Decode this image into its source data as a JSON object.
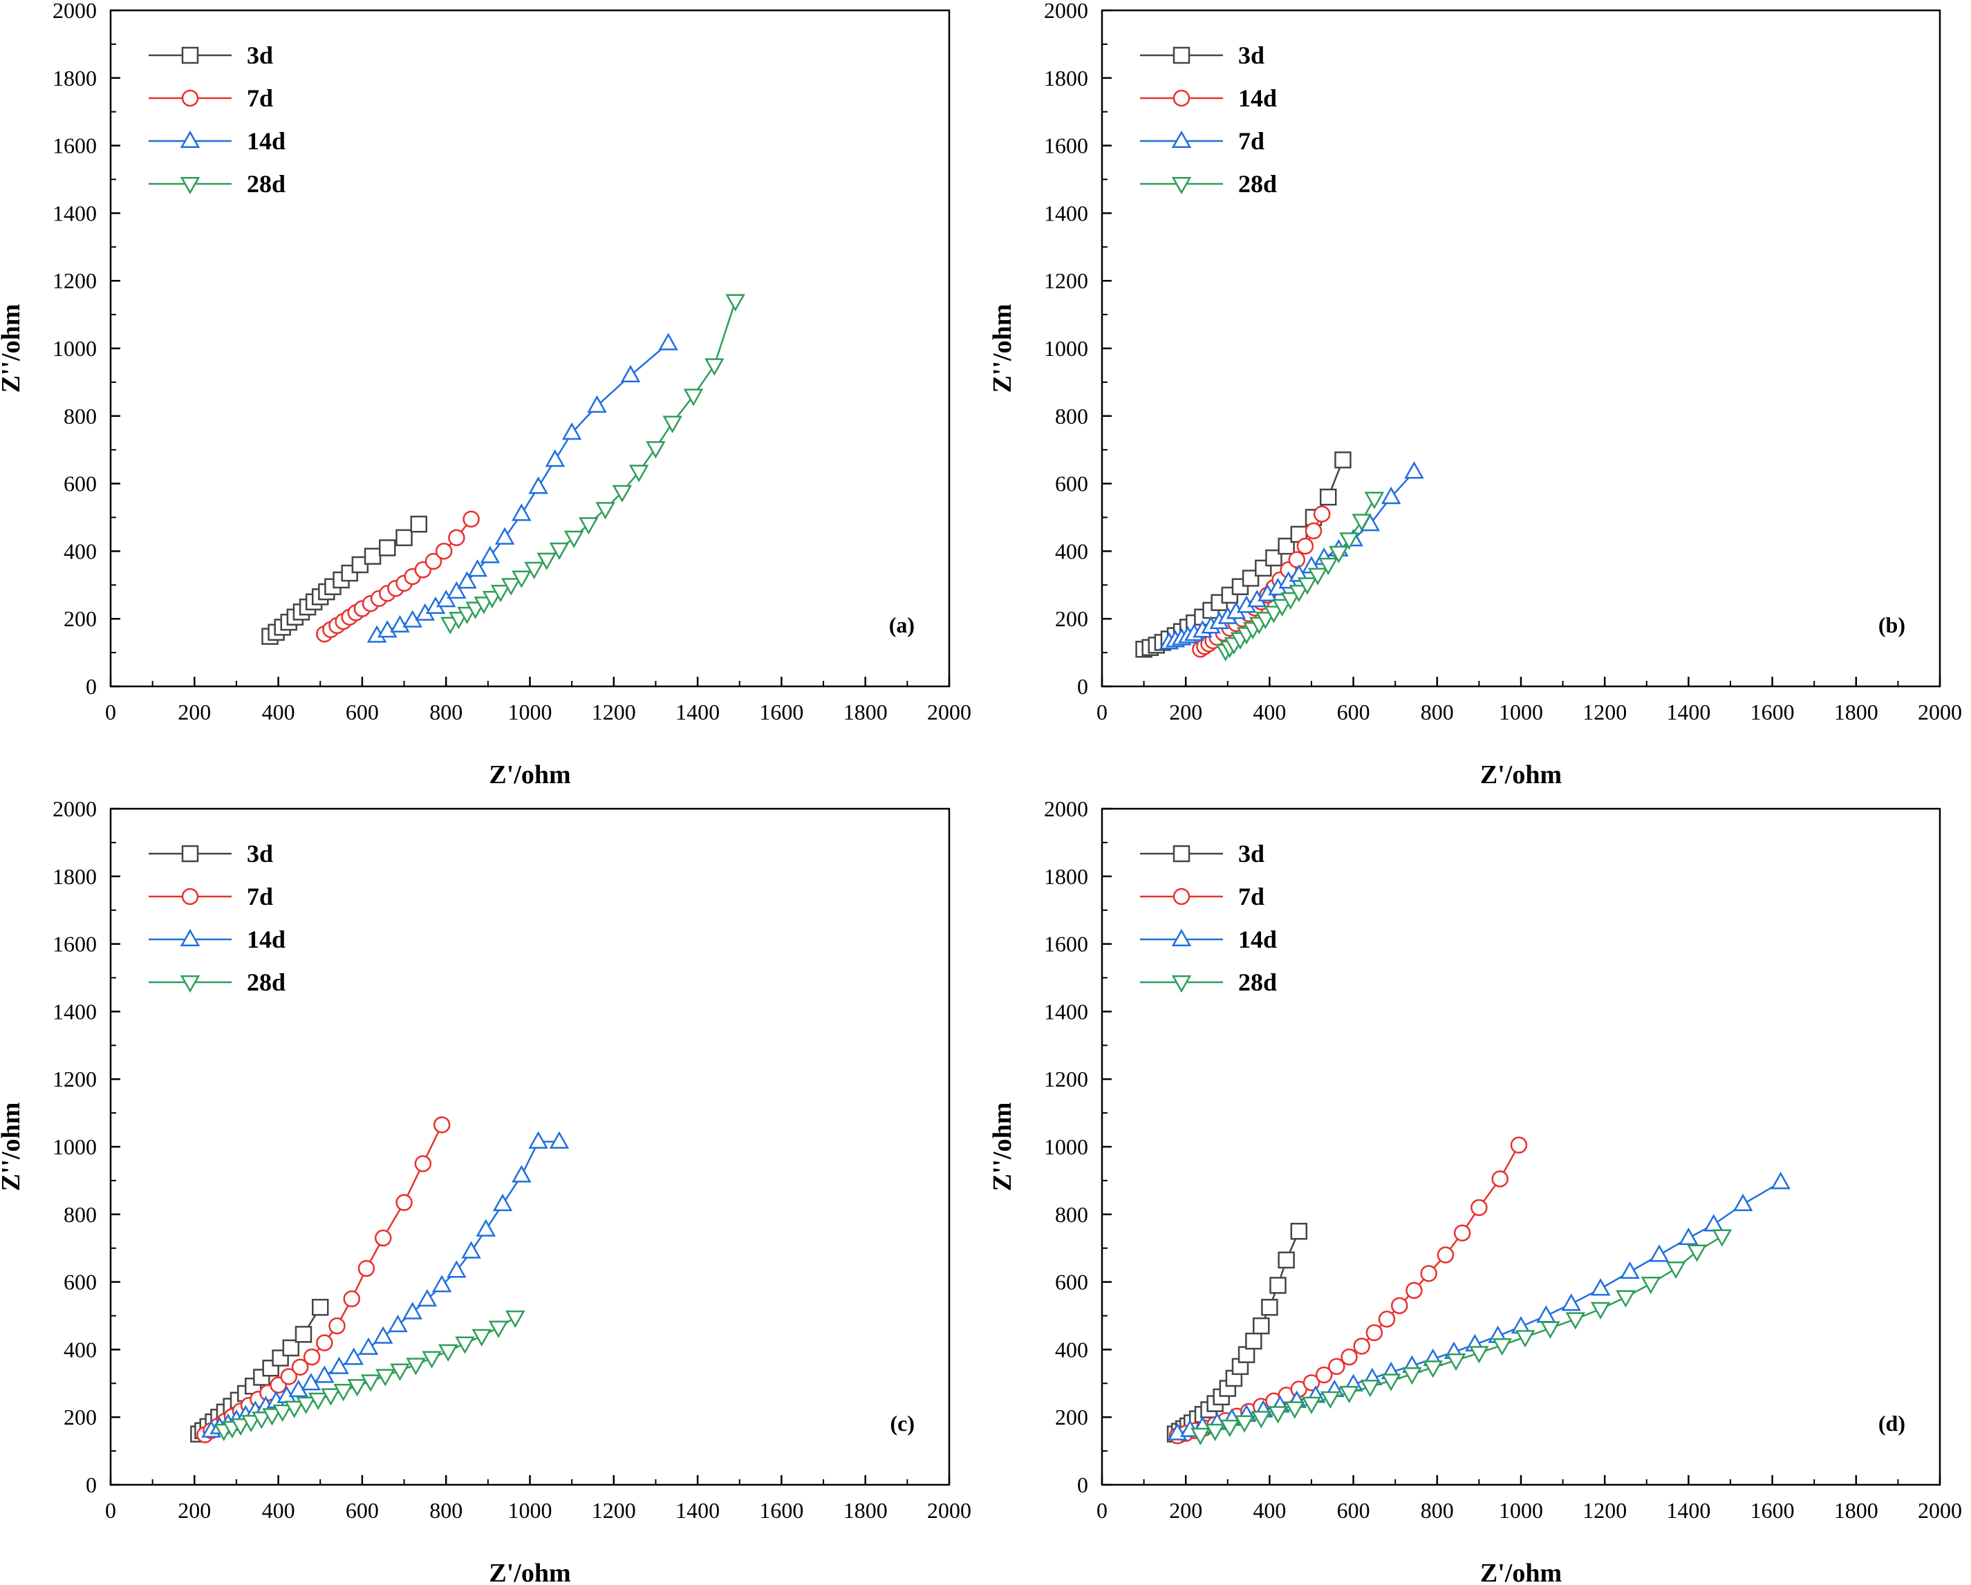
{
  "figure": {
    "panels": [
      "(a)",
      "(b)",
      "(c)",
      "(d)"
    ]
  },
  "chart_data": [
    {
      "type": "line",
      "panel_label": "(a)",
      "xlabel": "Z'/ohm",
      "ylabel": "Z''/ohm",
      "xlim": [
        0,
        2000
      ],
      "ylim": [
        0,
        2000
      ],
      "xticks": [
        0,
        200,
        400,
        600,
        800,
        1000,
        1200,
        1400,
        1600,
        1800,
        2000
      ],
      "yticks": [
        0,
        200,
        400,
        600,
        800,
        1000,
        1200,
        1400,
        1600,
        1800,
        2000
      ],
      "grid": false,
      "legend_position": "top-left",
      "series": [
        {
          "name": "3d",
          "color": "#454545",
          "marker": "square",
          "x": [
            380,
            395,
            410,
            425,
            440,
            455,
            470,
            485,
            500,
            515,
            530,
            550,
            570,
            595,
            625,
            660,
            700,
            735
          ],
          "y": [
            148,
            160,
            175,
            190,
            205,
            220,
            235,
            250,
            265,
            280,
            295,
            315,
            335,
            360,
            385,
            410,
            440,
            480
          ]
        },
        {
          "name": "7d",
          "color": "#e8312d",
          "marker": "circle",
          "x": [
            510,
            525,
            540,
            555,
            570,
            585,
            600,
            620,
            640,
            660,
            680,
            700,
            720,
            745,
            770,
            795,
            825,
            860
          ],
          "y": [
            155,
            168,
            180,
            192,
            205,
            218,
            230,
            245,
            260,
            275,
            290,
            305,
            325,
            345,
            370,
            400,
            440,
            495
          ]
        },
        {
          "name": "14d",
          "color": "#1f6fe0",
          "marker": "triangle-up",
          "x": [
            635,
            660,
            690,
            720,
            750,
            775,
            800,
            825,
            850,
            875,
            905,
            940,
            980,
            1020,
            1060,
            1100,
            1160,
            1240,
            1330
          ],
          "y": [
            150,
            165,
            180,
            195,
            215,
            235,
            255,
            280,
            310,
            345,
            385,
            440,
            510,
            590,
            670,
            750,
            830,
            920,
            1015
          ]
        },
        {
          "name": "28d",
          "color": "#2e9e58",
          "marker": "triangle-down",
          "x": [
            810,
            830,
            850,
            870,
            890,
            910,
            930,
            955,
            980,
            1010,
            1040,
            1070,
            1105,
            1140,
            1180,
            1220,
            1260,
            1300,
            1340,
            1390,
            1440,
            1490
          ],
          "y": [
            185,
            200,
            215,
            230,
            245,
            262,
            280,
            300,
            322,
            348,
            375,
            405,
            440,
            480,
            525,
            575,
            635,
            705,
            780,
            860,
            950,
            1140
          ]
        }
      ]
    },
    {
      "type": "line",
      "panel_label": "(b)",
      "xlabel": "Z'/ohm",
      "ylabel": "Z''/ohm",
      "xlim": [
        0,
        2000
      ],
      "ylim": [
        0,
        2000
      ],
      "xticks": [
        0,
        200,
        400,
        600,
        800,
        1000,
        1200,
        1400,
        1600,
        1800,
        2000
      ],
      "yticks": [
        0,
        200,
        400,
        600,
        800,
        1000,
        1200,
        1400,
        1600,
        1800,
        2000
      ],
      "grid": false,
      "legend_position": "top-left",
      "series": [
        {
          "name": "3d",
          "color": "#454545",
          "marker": "square",
          "x": [
            100,
            115,
            130,
            145,
            160,
            175,
            190,
            205,
            220,
            240,
            260,
            280,
            305,
            330,
            355,
            385,
            410,
            440,
            470,
            505,
            540,
            575
          ],
          "y": [
            110,
            115,
            122,
            130,
            140,
            150,
            162,
            175,
            188,
            205,
            225,
            248,
            270,
            295,
            320,
            350,
            380,
            415,
            450,
            500,
            560,
            670
          ]
        },
        {
          "name": "14d",
          "color": "#e8312d",
          "marker": "circle",
          "x": [
            235,
            245,
            255,
            265,
            275,
            290,
            305,
            320,
            335,
            350,
            365,
            380,
            395,
            410,
            425,
            445,
            465,
            485,
            505,
            525
          ],
          "y": [
            110,
            118,
            126,
            135,
            145,
            158,
            172,
            186,
            200,
            215,
            232,
            250,
            270,
            292,
            315,
            345,
            375,
            415,
            460,
            510
          ]
        },
        {
          "name": "7d",
          "color": "#1f6fe0",
          "marker": "triangle-up",
          "x": [
            160,
            175,
            190,
            205,
            220,
            240,
            260,
            280,
            300,
            320,
            345,
            370,
            395,
            420,
            445,
            470,
            500,
            530,
            565,
            600,
            640,
            690,
            745
          ],
          "y": [
            130,
            136,
            142,
            148,
            155,
            165,
            177,
            190,
            205,
            220,
            238,
            255,
            272,
            290,
            310,
            330,
            355,
            380,
            405,
            435,
            480,
            560,
            635
          ]
        },
        {
          "name": "28d",
          "color": "#2e9e58",
          "marker": "triangle-down",
          "x": [
            295,
            305,
            315,
            330,
            345,
            360,
            375,
            390,
            410,
            430,
            450,
            470,
            490,
            515,
            540,
            565,
            590,
            620,
            650
          ],
          "y": [
            105,
            115,
            125,
            140,
            155,
            170,
            185,
            200,
            218,
            238,
            258,
            280,
            302,
            330,
            360,
            395,
            435,
            490,
            555
          ]
        }
      ]
    },
    {
      "type": "line",
      "panel_label": "(c)",
      "xlabel": "Z'/ohm",
      "ylabel": "Z''/ohm",
      "xlim": [
        0,
        2000
      ],
      "ylim": [
        0,
        2000
      ],
      "xticks": [
        0,
        200,
        400,
        600,
        800,
        1000,
        1200,
        1400,
        1600,
        1800,
        2000
      ],
      "yticks": [
        0,
        200,
        400,
        600,
        800,
        1000,
        1200,
        1400,
        1600,
        1800,
        2000
      ],
      "grid": false,
      "legend_position": "top-left",
      "series": [
        {
          "name": "3d",
          "color": "#454545",
          "marker": "square",
          "x": [
            210,
            220,
            232,
            245,
            258,
            272,
            288,
            305,
            322,
            340,
            360,
            382,
            405,
            430,
            460,
            500
          ],
          "y": [
            150,
            160,
            172,
            186,
            200,
            215,
            232,
            250,
            270,
            292,
            318,
            345,
            375,
            405,
            445,
            525
          ]
        },
        {
          "name": "7d",
          "color": "#e8312d",
          "marker": "circle",
          "x": [
            225,
            240,
            255,
            272,
            290,
            310,
            330,
            352,
            375,
            400,
            425,
            452,
            480,
            510,
            540,
            575,
            610,
            650,
            700,
            745,
            790
          ],
          "y": [
            148,
            160,
            173,
            187,
            202,
            218,
            235,
            253,
            272,
            295,
            320,
            348,
            378,
            420,
            470,
            550,
            640,
            730,
            835,
            950,
            1065
          ]
        },
        {
          "name": "14d",
          "color": "#1f6fe0",
          "marker": "triangle-up",
          "x": [
            240,
            260,
            280,
            300,
            322,
            345,
            370,
            395,
            420,
            448,
            478,
            510,
            545,
            580,
            615,
            650,
            685,
            720,
            755,
            790,
            825,
            860,
            895,
            935,
            980,
            1020,
            1070
          ],
          "y": [
            160,
            170,
            180,
            192,
            205,
            218,
            232,
            247,
            262,
            280,
            300,
            322,
            348,
            375,
            405,
            438,
            472,
            510,
            548,
            590,
            633,
            690,
            755,
            830,
            915,
            1015,
            1015
          ]
        },
        {
          "name": "28d",
          "color": "#2e9e58",
          "marker": "triangle-down",
          "x": [
            270,
            290,
            310,
            335,
            360,
            385,
            410,
            438,
            466,
            495,
            525,
            555,
            588,
            620,
            655,
            690,
            728,
            766,
            805,
            845,
            885,
            925,
            965
          ],
          "y": [
            160,
            168,
            176,
            186,
            196,
            206,
            217,
            228,
            240,
            252,
            265,
            278,
            292,
            306,
            322,
            338,
            355,
            375,
            395,
            418,
            440,
            465,
            495
          ]
        }
      ]
    },
    {
      "type": "line",
      "panel_label": "(d)",
      "xlabel": "Z'/ohm",
      "ylabel": "Z''/ohm",
      "xlim": [
        0,
        2000
      ],
      "ylim": [
        0,
        2000
      ],
      "xticks": [
        0,
        200,
        400,
        600,
        800,
        1000,
        1200,
        1400,
        1600,
        1800,
        2000
      ],
      "yticks": [
        0,
        200,
        400,
        600,
        800,
        1000,
        1200,
        1400,
        1600,
        1800,
        2000
      ],
      "grid": false,
      "legend_position": "top-left",
      "series": [
        {
          "name": "3d",
          "color": "#454545",
          "marker": "square",
          "x": [
            175,
            185,
            195,
            205,
            215,
            228,
            241,
            255,
            270,
            285,
            300,
            315,
            330,
            345,
            362,
            380,
            400,
            420,
            440,
            470
          ],
          "y": [
            150,
            158,
            166,
            174,
            183,
            195,
            208,
            222,
            240,
            260,
            285,
            315,
            350,
            385,
            425,
            470,
            525,
            590,
            665,
            750
          ]
        },
        {
          "name": "7d",
          "color": "#e8312d",
          "marker": "circle",
          "x": [
            180,
            200,
            222,
            245,
            270,
            295,
            322,
            350,
            380,
            410,
            440,
            470,
            500,
            530,
            560,
            590,
            620,
            650,
            680,
            710,
            745,
            780,
            820,
            860,
            900,
            950,
            995
          ],
          "y": [
            145,
            152,
            160,
            168,
            178,
            190,
            203,
            217,
            232,
            248,
            265,
            283,
            302,
            325,
            350,
            378,
            410,
            450,
            490,
            530,
            575,
            625,
            680,
            745,
            820,
            905,
            1005
          ]
        },
        {
          "name": "14d",
          "color": "#1f6fe0",
          "marker": "triangle-up",
          "x": [
            180,
            210,
            240,
            275,
            310,
            345,
            385,
            425,
            465,
            510,
            555,
            600,
            645,
            690,
            740,
            790,
            840,
            890,
            945,
            1000,
            1060,
            1120,
            1190,
            1260,
            1330,
            1400,
            1460,
            1530,
            1620
          ],
          "y": [
            152,
            162,
            172,
            183,
            195,
            207,
            220,
            234,
            248,
            263,
            280,
            297,
            315,
            333,
            352,
            372,
            393,
            415,
            440,
            468,
            500,
            535,
            580,
            630,
            680,
            730,
            770,
            830,
            895
          ]
        },
        {
          "name": "28d",
          "color": "#2e9e58",
          "marker": "triangle-down",
          "x": [
            235,
            270,
            305,
            340,
            380,
            420,
            460,
            500,
            545,
            590,
            640,
            690,
            740,
            790,
            845,
            900,
            955,
            1010,
            1070,
            1130,
            1190,
            1250,
            1310,
            1370,
            1420,
            1480
          ],
          "y": [
            148,
            160,
            172,
            185,
            198,
            212,
            226,
            240,
            256,
            272,
            290,
            308,
            327,
            347,
            368,
            390,
            413,
            437,
            463,
            490,
            520,
            555,
            595,
            640,
            690,
            735
          ]
        }
      ]
    }
  ]
}
